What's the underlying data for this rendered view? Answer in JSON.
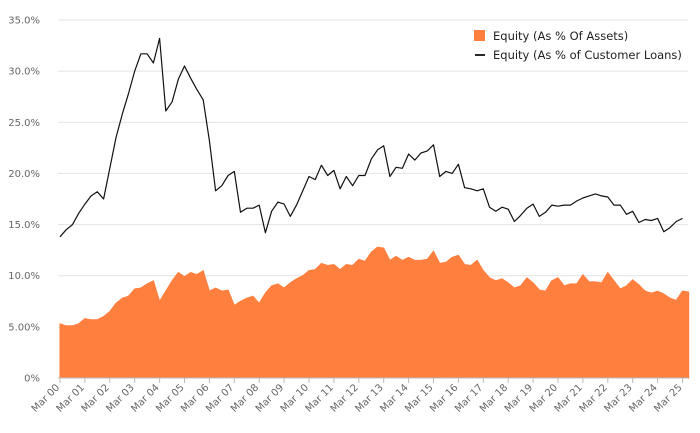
{
  "chart_data": {
    "type": "area",
    "x_labels": [
      "Mar 00",
      "Mar 01",
      "Mar 02",
      "Mar 03",
      "Mar 04",
      "Mar 05",
      "Mar 06",
      "Mar 07",
      "Mar 08",
      "Mar 09",
      "Mar 10",
      "Mar 11",
      "Mar 12",
      "Mar 13",
      "Mar 14",
      "Mar 15",
      "Mar 16",
      "Mar 17",
      "Mar 18",
      "Mar 19",
      "Mar 20",
      "Mar 21",
      "Mar 22",
      "Mar 23",
      "Mar 24",
      "Mar 25"
    ],
    "y_ticks": [
      "0%",
      "5.00%",
      "10.0%",
      "15.0%",
      "20.0%",
      "25.0%",
      "30.0%",
      "35.0%"
    ],
    "ylim": [
      0,
      35
    ],
    "points_per_year": 4,
    "grid": "horizontal",
    "legend_position": "top-right",
    "series": [
      {
        "name": "Equity (As % Of Assets)",
        "style": "area",
        "color": "#ff7f3f",
        "values": [
          5.3,
          5.1,
          5.1,
          5.3,
          5.8,
          5.7,
          5.7,
          6.0,
          6.5,
          7.3,
          7.8,
          8.0,
          8.7,
          8.8,
          9.2,
          9.5,
          7.5,
          8.5,
          9.5,
          10.3,
          9.9,
          10.3,
          10.1,
          10.5,
          8.5,
          8.8,
          8.5,
          8.6,
          7.1,
          7.5,
          7.8,
          8.0,
          7.3,
          8.3,
          9.0,
          9.2,
          8.8,
          9.3,
          9.7,
          10.0,
          10.5,
          10.6,
          11.2,
          11.0,
          11.1,
          10.6,
          11.1,
          11.0,
          11.6,
          11.4,
          12.3,
          12.8,
          12.7,
          11.5,
          11.9,
          11.5,
          11.8,
          11.5,
          11.5,
          11.6,
          12.4,
          11.2,
          11.3,
          11.8,
          12.0,
          11.1,
          11.0,
          11.5,
          10.5,
          9.8,
          9.5,
          9.7,
          9.3,
          8.8,
          9.0,
          9.8,
          9.3,
          8.6,
          8.5,
          9.5,
          9.8,
          9.0,
          9.2,
          9.2,
          10.1,
          9.4,
          9.4,
          9.3,
          10.3,
          9.5,
          8.7,
          9.0,
          9.6,
          9.1,
          8.5,
          8.3,
          8.5,
          8.2,
          7.8,
          7.6,
          8.5,
          8.4
        ]
      },
      {
        "name": "Equity (As % of Customer Loans)",
        "style": "line",
        "color": "#111111",
        "values": [
          13.8,
          14.5,
          15.0,
          16.1,
          17.0,
          17.8,
          18.2,
          17.5,
          20.5,
          23.5,
          25.8,
          27.8,
          30.0,
          31.7,
          31.7,
          30.8,
          33.2,
          26.1,
          27.0,
          29.2,
          30.5,
          29.3,
          28.2,
          27.2,
          23.2,
          18.3,
          18.8,
          19.8,
          20.2,
          16.2,
          16.6,
          16.6,
          16.9,
          14.2,
          16.3,
          17.2,
          17.0,
          15.8,
          16.9,
          18.3,
          19.7,
          19.4,
          20.8,
          19.8,
          20.3,
          18.5,
          19.7,
          18.8,
          19.8,
          19.8,
          21.4,
          22.3,
          22.7,
          19.7,
          20.6,
          20.5,
          21.9,
          21.3,
          22.0,
          22.2,
          22.8,
          19.7,
          20.2,
          20.0,
          20.9,
          18.6,
          18.5,
          18.3,
          18.5,
          16.7,
          16.3,
          16.7,
          16.5,
          15.3,
          15.9,
          16.6,
          17.0,
          15.8,
          16.2,
          16.9,
          16.8,
          16.9,
          16.9,
          17.3,
          17.6,
          17.8,
          18.0,
          17.8,
          17.7,
          16.9,
          16.9,
          16.0,
          16.3,
          15.2,
          15.5,
          15.4,
          15.6,
          14.3,
          14.7,
          15.3,
          15.6
        ]
      }
    ]
  }
}
